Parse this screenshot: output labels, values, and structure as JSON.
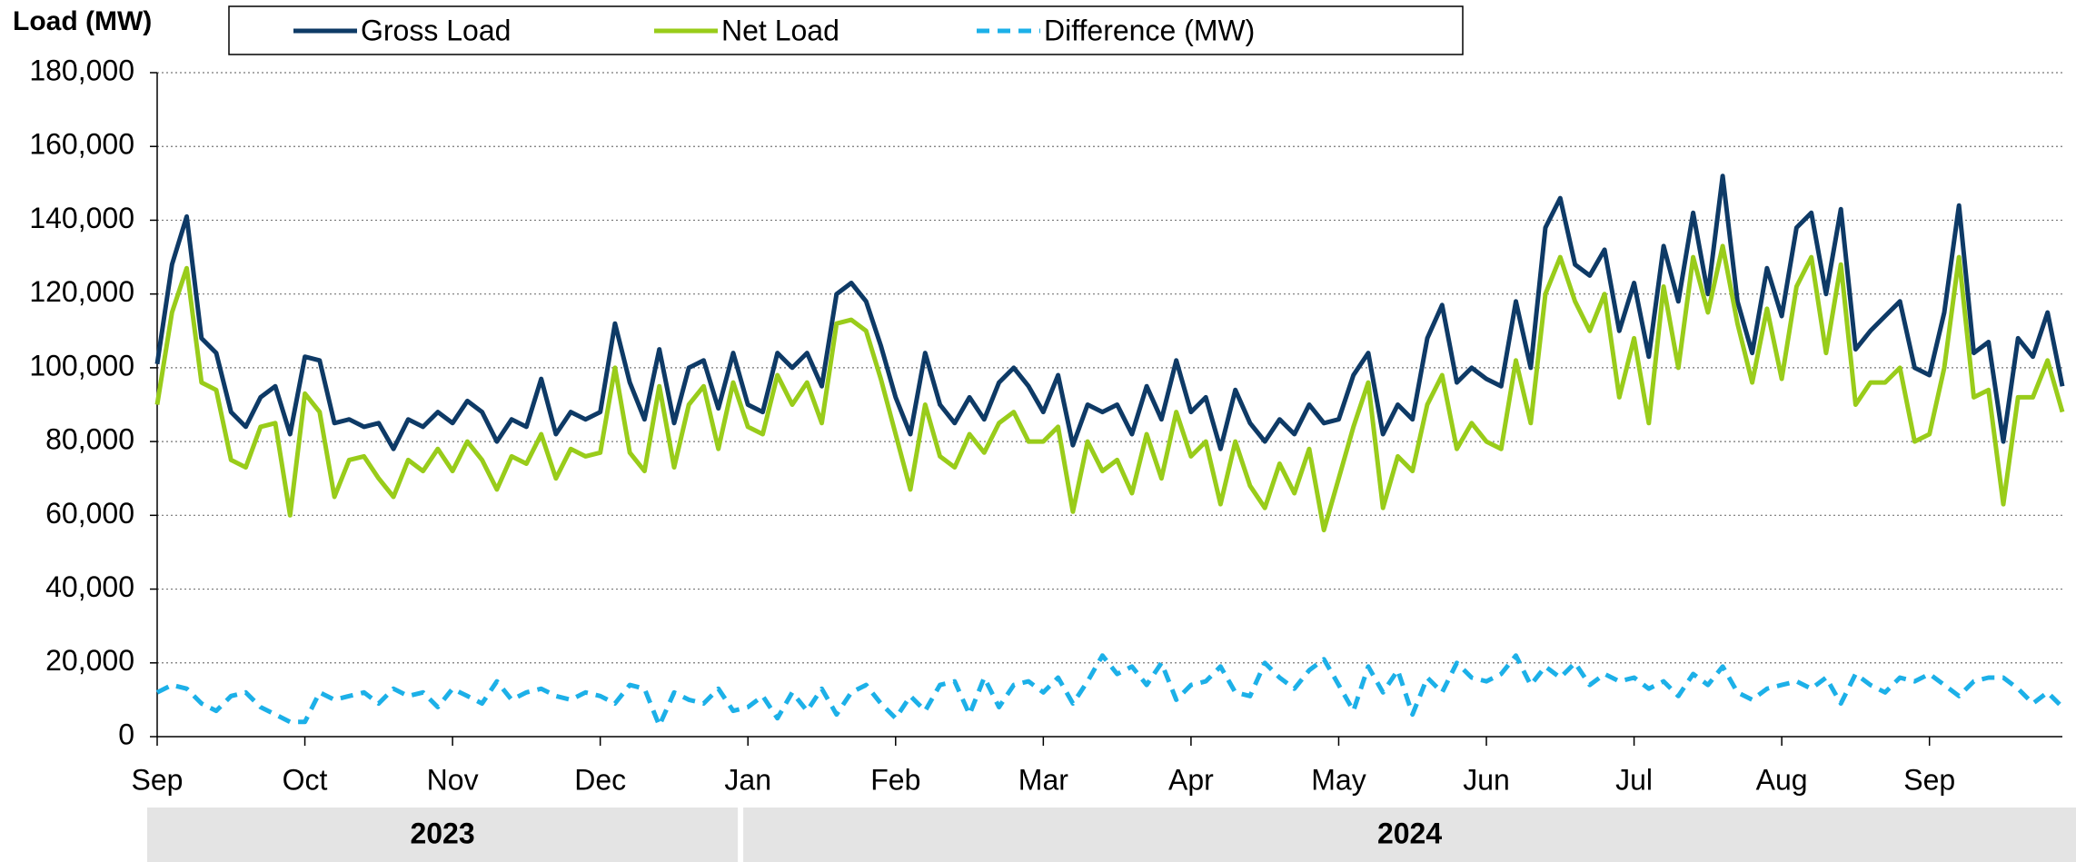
{
  "chart_data": {
    "type": "line",
    "y_title": "Load (MW)",
    "categories": [
      "Sep",
      null,
      null,
      null,
      null,
      null,
      null,
      null,
      null,
      null,
      "Oct",
      null,
      null,
      null,
      null,
      null,
      null,
      null,
      null,
      null,
      "Nov",
      null,
      null,
      null,
      null,
      null,
      null,
      null,
      null,
      null,
      "Dec",
      null,
      null,
      null,
      null,
      null,
      null,
      null,
      null,
      null,
      "Jan",
      null,
      null,
      null,
      null,
      null,
      null,
      null,
      null,
      null,
      "Feb",
      null,
      null,
      null,
      null,
      null,
      null,
      null,
      null,
      null,
      "Mar",
      null,
      null,
      null,
      null,
      null,
      null,
      null,
      null,
      null,
      "Apr",
      null,
      null,
      null,
      null,
      null,
      null,
      null,
      null,
      null,
      "May",
      null,
      null,
      null,
      null,
      null,
      null,
      null,
      null,
      null,
      "Jun",
      null,
      null,
      null,
      null,
      null,
      null,
      null,
      null,
      null,
      "Jul",
      null,
      null,
      null,
      null,
      null,
      null,
      null,
      null,
      null,
      "Aug",
      null,
      null,
      null,
      null,
      null,
      null,
      null,
      null,
      null,
      "Sep",
      null,
      null,
      null,
      null,
      null,
      null,
      null,
      null,
      null
    ],
    "year_groups": [
      "2023",
      "2024"
    ],
    "series": [
      {
        "name": "Gross Load",
        "color": "#0e3a66",
        "dashed": false,
        "values": [
          101,
          128,
          141,
          108,
          104,
          88,
          84,
          92,
          95,
          82,
          103,
          102,
          85,
          86,
          84,
          85,
          78,
          86,
          84,
          88,
          85,
          91,
          88,
          80,
          86,
          84,
          97,
          82,
          88,
          86,
          88,
          112,
          96,
          86,
          105,
          85,
          100,
          102,
          89,
          104,
          90,
          88,
          104,
          100,
          104,
          95,
          120,
          123,
          118,
          106,
          92,
          82,
          104,
          90,
          85,
          92,
          86,
          96,
          100,
          95,
          88,
          98,
          79,
          90,
          88,
          90,
          82,
          95,
          86,
          102,
          88,
          92,
          78,
          94,
          85,
          80,
          86,
          82,
          90,
          85,
          86,
          98,
          104,
          82,
          90,
          86,
          108,
          117,
          96,
          100,
          97,
          95,
          118,
          100,
          138,
          146,
          128,
          125,
          132,
          110,
          123,
          103,
          133,
          118,
          142,
          120,
          152,
          118,
          104,
          127,
          114,
          138,
          142,
          120,
          143,
          105,
          110,
          114,
          118,
          100,
          98,
          115,
          144,
          104,
          107,
          80,
          108,
          103,
          115,
          95
        ]
      },
      {
        "name": "Net Load",
        "color": "#99cc1a",
        "dashed": false,
        "values": [
          90,
          115,
          127,
          96,
          94,
          75,
          73,
          84,
          85,
          60,
          93,
          88,
          65,
          75,
          76,
          70,
          65,
          75,
          72,
          78,
          72,
          80,
          75,
          67,
          76,
          74,
          82,
          70,
          78,
          76,
          77,
          100,
          77,
          72,
          95,
          73,
          90,
          95,
          78,
          96,
          84,
          82,
          98,
          90,
          96,
          85,
          112,
          113,
          110,
          97,
          82,
          67,
          90,
          76,
          73,
          82,
          77,
          85,
          88,
          80,
          80,
          84,
          61,
          80,
          72,
          75,
          66,
          82,
          70,
          88,
          76,
          80,
          63,
          80,
          68,
          62,
          74,
          66,
          78,
          56,
          70,
          84,
          96,
          62,
          76,
          72,
          90,
          98,
          78,
          85,
          80,
          78,
          102,
          85,
          120,
          130,
          118,
          110,
          120,
          92,
          108,
          85,
          122,
          100,
          130,
          115,
          133,
          112,
          96,
          116,
          97,
          122,
          130,
          104,
          128,
          90,
          96,
          96,
          100,
          80,
          82,
          100,
          130,
          92,
          94,
          63,
          92,
          92,
          102,
          88
        ]
      },
      {
        "name": "Difference (MW)",
        "color": "#1cb0e8",
        "dashed": true,
        "values": [
          12,
          14,
          13,
          9,
          7,
          11,
          12,
          8,
          6,
          4,
          4,
          12,
          10,
          11,
          12,
          9,
          13,
          11,
          12,
          8,
          13,
          11,
          9,
          15,
          10,
          12,
          13,
          11,
          10,
          12,
          11,
          9,
          14,
          13,
          3,
          12,
          10,
          9,
          13,
          7,
          8,
          11,
          5,
          12,
          7,
          13,
          6,
          12,
          14,
          9,
          5,
          11,
          7,
          14,
          15,
          6,
          16,
          8,
          14,
          15,
          12,
          16,
          9,
          15,
          22,
          17,
          19,
          14,
          20,
          10,
          14,
          15,
          19,
          12,
          11,
          20,
          16,
          13,
          18,
          21,
          14,
          7,
          19,
          12,
          18,
          6,
          16,
          12,
          20,
          16,
          15,
          17,
          22,
          14,
          19,
          16,
          20,
          14,
          17,
          15,
          16,
          13,
          15,
          11,
          17,
          14,
          19,
          12,
          10,
          13,
          14,
          15,
          13,
          16,
          9,
          17,
          14,
          12,
          16,
          15,
          17,
          14,
          11,
          15,
          16,
          16,
          13,
          9,
          12,
          8
        ]
      }
    ],
    "ylim": [
      0,
      180000
    ],
    "value_scale": 1000,
    "yticks": [
      0,
      {
        "value": 20000,
        "label": "20,000"
      },
      {
        "value": 40000,
        "label": "40,000"
      },
      {
        "value": 60000,
        "label": "60,000"
      },
      {
        "value": 80000,
        "label": "80,000"
      },
      {
        "value": 100000,
        "label": "100,000"
      },
      {
        "value": 120000,
        "label": "120,000"
      },
      {
        "value": 140000,
        "label": "140,000"
      },
      {
        "value": 160000,
        "label": "160,000"
      },
      {
        "value": 180000,
        "label": "180,000"
      }
    ],
    "grid": true,
    "legend": "top"
  }
}
